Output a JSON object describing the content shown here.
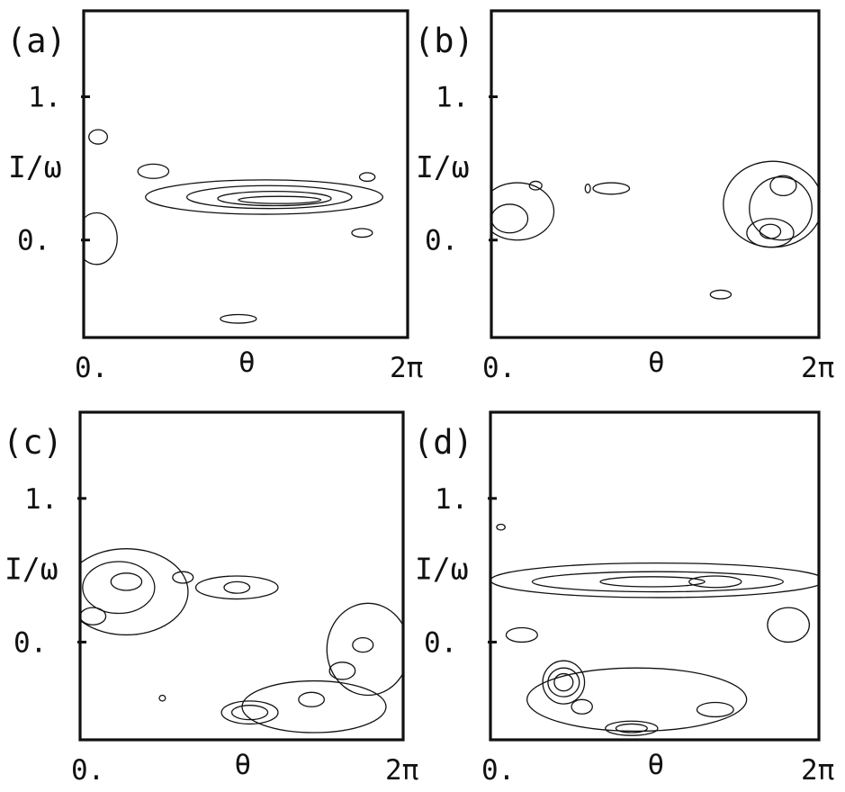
{
  "chart_data": [
    {
      "type": "contour",
      "panel_label": "(a)",
      "xlabel": "θ",
      "ylabel": "I/ω",
      "xticks": [
        "0.",
        "2π"
      ],
      "yticks": [
        "1.",
        "0."
      ],
      "xlim": [
        0,
        6.283
      ],
      "ylim": [
        -0.68,
        1.6
      ],
      "contours": [
        {
          "cx": 3.5,
          "cy": 0.3,
          "rx": 2.3,
          "ry": 0.12
        },
        {
          "cx": 3.6,
          "cy": 0.3,
          "rx": 1.6,
          "ry": 0.08
        },
        {
          "cx": 3.7,
          "cy": 0.29,
          "rx": 1.1,
          "ry": 0.05
        },
        {
          "cx": 3.8,
          "cy": 0.28,
          "rx": 0.8,
          "ry": 0.025
        },
        {
          "cx": 1.35,
          "cy": 0.48,
          "rx": 0.3,
          "ry": 0.05
        },
        {
          "cx": 0.28,
          "cy": 0.72,
          "rx": 0.18,
          "ry": 0.05
        },
        {
          "cx": 5.5,
          "cy": 0.44,
          "rx": 0.15,
          "ry": 0.03
        },
        {
          "cx": 5.4,
          "cy": 0.05,
          "rx": 0.2,
          "ry": 0.03
        },
        {
          "cx": 0.25,
          "cy": 0.01,
          "rx": 0.4,
          "ry": 0.18
        },
        {
          "cx": 3.0,
          "cy": -0.55,
          "rx": 0.35,
          "ry": 0.03
        }
      ]
    },
    {
      "type": "contour",
      "panel_label": "(b)",
      "xlabel": "θ",
      "ylabel": "I/ω",
      "xticks": [
        "0.",
        "2π"
      ],
      "yticks": [
        "1.",
        "0."
      ],
      "xlim": [
        0,
        6.283
      ],
      "ylim": [
        -0.68,
        1.6
      ],
      "contours": [
        {
          "cx": 0.5,
          "cy": 0.2,
          "rx": 0.7,
          "ry": 0.2
        },
        {
          "cx": 0.35,
          "cy": 0.15,
          "rx": 0.35,
          "ry": 0.1
        },
        {
          "cx": 0.85,
          "cy": 0.38,
          "rx": 0.12,
          "ry": 0.03
        },
        {
          "cx": 2.3,
          "cy": 0.36,
          "rx": 0.35,
          "ry": 0.04
        },
        {
          "cx": 1.85,
          "cy": 0.36,
          "rx": 0.05,
          "ry": 0.03
        },
        {
          "cx": 5.4,
          "cy": 0.25,
          "rx": 0.95,
          "ry": 0.3
        },
        {
          "cx": 5.55,
          "cy": 0.22,
          "rx": 0.6,
          "ry": 0.22
        },
        {
          "cx": 5.6,
          "cy": 0.38,
          "rx": 0.25,
          "ry": 0.07
        },
        {
          "cx": 5.35,
          "cy": 0.05,
          "rx": 0.45,
          "ry": 0.1
        },
        {
          "cx": 5.35,
          "cy": 0.06,
          "rx": 0.2,
          "ry": 0.05
        },
        {
          "cx": 4.4,
          "cy": -0.38,
          "rx": 0.2,
          "ry": 0.03
        }
      ]
    },
    {
      "type": "contour",
      "panel_label": "(c)",
      "xlabel": "θ",
      "ylabel": "I/ω",
      "xticks": [
        "0.",
        "2π"
      ],
      "yticks": [
        "1.",
        "0."
      ],
      "xlim": [
        0,
        6.283
      ],
      "ylim": [
        -0.68,
        1.6
      ],
      "contours": [
        {
          "cx": 0.9,
          "cy": 0.35,
          "rx": 1.2,
          "ry": 0.3
        },
        {
          "cx": 0.75,
          "cy": 0.38,
          "rx": 0.7,
          "ry": 0.18
        },
        {
          "cx": 0.9,
          "cy": 0.42,
          "rx": 0.3,
          "ry": 0.06
        },
        {
          "cx": 0.25,
          "cy": 0.18,
          "rx": 0.25,
          "ry": 0.06
        },
        {
          "cx": 2.0,
          "cy": 0.45,
          "rx": 0.2,
          "ry": 0.04
        },
        {
          "cx": 3.05,
          "cy": 0.38,
          "rx": 0.8,
          "ry": 0.08
        },
        {
          "cx": 3.05,
          "cy": 0.38,
          "rx": 0.25,
          "ry": 0.04
        },
        {
          "cx": 4.55,
          "cy": -0.45,
          "rx": 1.4,
          "ry": 0.18
        },
        {
          "cx": 3.3,
          "cy": -0.49,
          "rx": 0.55,
          "ry": 0.08
        },
        {
          "cx": 3.3,
          "cy": -0.49,
          "rx": 0.35,
          "ry": 0.05
        },
        {
          "cx": 5.6,
          "cy": -0.05,
          "rx": 0.8,
          "ry": 0.32
        },
        {
          "cx": 5.1,
          "cy": -0.2,
          "rx": 0.25,
          "ry": 0.06
        },
        {
          "cx": 5.5,
          "cy": -0.02,
          "rx": 0.2,
          "ry": 0.05
        },
        {
          "cx": 4.5,
          "cy": -0.4,
          "rx": 0.25,
          "ry": 0.05
        },
        {
          "cx": 1.6,
          "cy": -0.39,
          "rx": 0.06,
          "ry": 0.02
        }
      ]
    },
    {
      "type": "contour",
      "panel_label": "(d)",
      "xlabel": "θ",
      "ylabel": "I/ω",
      "xticks": [
        "0.",
        "2π"
      ],
      "yticks": [
        "1.",
        "0."
      ],
      "xlim": [
        0,
        6.283
      ],
      "ylim": [
        -0.68,
        1.6
      ],
      "contours": [
        {
          "cx": 3.2,
          "cy": 0.43,
          "rx": 3.2,
          "ry": 0.12
        },
        {
          "cx": 3.2,
          "cy": 0.42,
          "rx": 2.4,
          "ry": 0.07
        },
        {
          "cx": 3.1,
          "cy": 0.42,
          "rx": 1.0,
          "ry": 0.035
        },
        {
          "cx": 4.3,
          "cy": 0.42,
          "rx": 0.5,
          "ry": 0.04
        },
        {
          "cx": 5.7,
          "cy": 0.12,
          "rx": 0.4,
          "ry": 0.12
        },
        {
          "cx": 0.6,
          "cy": 0.05,
          "rx": 0.3,
          "ry": 0.05
        },
        {
          "cx": 0.2,
          "cy": 0.8,
          "rx": 0.08,
          "ry": 0.02
        },
        {
          "cx": 1.4,
          "cy": -0.28,
          "rx": 0.4,
          "ry": 0.15
        },
        {
          "cx": 1.4,
          "cy": -0.28,
          "rx": 0.3,
          "ry": 0.1
        },
        {
          "cx": 1.4,
          "cy": -0.28,
          "rx": 0.18,
          "ry": 0.06
        },
        {
          "cx": 1.75,
          "cy": -0.45,
          "rx": 0.2,
          "ry": 0.05
        },
        {
          "cx": 2.7,
          "cy": -0.6,
          "rx": 0.5,
          "ry": 0.05
        },
        {
          "cx": 2.7,
          "cy": -0.6,
          "rx": 0.3,
          "ry": 0.03
        },
        {
          "cx": 4.3,
          "cy": -0.47,
          "rx": 0.35,
          "ry": 0.05
        },
        {
          "cx": 2.8,
          "cy": -0.4,
          "rx": 2.1,
          "ry": 0.22
        }
      ]
    }
  ]
}
